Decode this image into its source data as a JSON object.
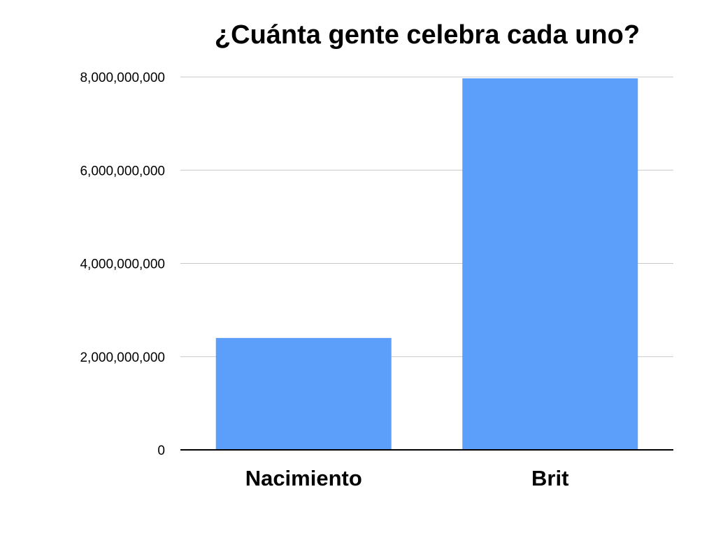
{
  "chart_data": {
    "type": "bar",
    "title": "¿Cuánta gente celebra cada uno?",
    "xlabel": "",
    "ylabel": "",
    "categories": [
      "Nacimiento",
      "Brit"
    ],
    "values": [
      2400000000,
      7970000000
    ],
    "ylim": [
      0,
      8000000000
    ],
    "yticks": [
      0,
      2000000000,
      4000000000,
      6000000000,
      8000000000
    ],
    "ytick_labels": [
      "0",
      "2,000,000,000",
      "4,000,000,000",
      "6,000,000,000",
      "8,000,000,000"
    ],
    "grid": true,
    "legend": "none",
    "bar_color": "#5b9ffb",
    "gridline_color": "#c8c8c8",
    "baseline_color": "#000000"
  }
}
